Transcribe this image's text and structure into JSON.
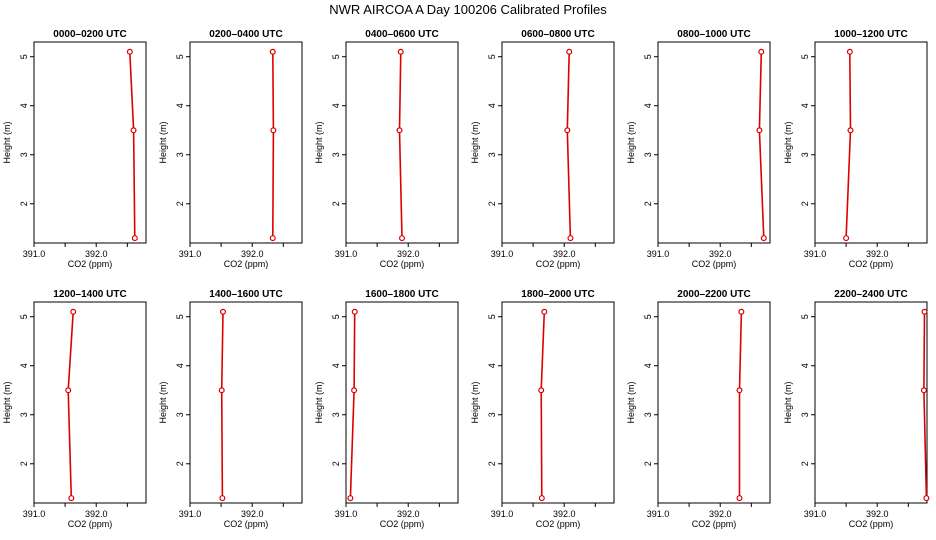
{
  "title": "NWR AIRCOA A  Day 100206  Calibrated Profiles",
  "chart_data": {
    "type": "line",
    "xlabel": "CO2 (ppm)",
    "ylabel": "Height (m)",
    "xlim": [
      391.0,
      392.8
    ],
    "ylim": [
      1.2,
      5.3
    ],
    "xticks": [
      391.0,
      391.5,
      392.0,
      392.5
    ],
    "xtick_labels": [
      "391.0",
      "",
      "392.0",
      ""
    ],
    "yticks": [
      2,
      3,
      4,
      5
    ],
    "ytick_labels": [
      "2",
      "3",
      "4",
      "5"
    ],
    "series_color": "#dd0000",
    "panels": [
      {
        "title": "0000–0200 UTC",
        "points": [
          {
            "x": 392.54,
            "y": 5.1
          },
          {
            "x": 392.6,
            "y": 3.5
          },
          {
            "x": 392.62,
            "y": 1.3
          }
        ]
      },
      {
        "title": "0200–0400 UTC",
        "points": [
          {
            "x": 392.33,
            "y": 5.1
          },
          {
            "x": 392.34,
            "y": 3.5
          },
          {
            "x": 392.33,
            "y": 1.3
          }
        ]
      },
      {
        "title": "0400–0600 UTC",
        "points": [
          {
            "x": 391.88,
            "y": 5.1
          },
          {
            "x": 391.86,
            "y": 3.5
          },
          {
            "x": 391.9,
            "y": 1.3
          }
        ]
      },
      {
        "title": "0600–0800 UTC",
        "points": [
          {
            "x": 392.08,
            "y": 5.1
          },
          {
            "x": 392.05,
            "y": 3.5
          },
          {
            "x": 392.1,
            "y": 1.3
          }
        ]
      },
      {
        "title": "0800–1000 UTC",
        "points": [
          {
            "x": 392.66,
            "y": 5.1
          },
          {
            "x": 392.63,
            "y": 3.5
          },
          {
            "x": 392.7,
            "y": 1.3
          }
        ]
      },
      {
        "title": "1000–1200 UTC",
        "points": [
          {
            "x": 391.56,
            "y": 5.1
          },
          {
            "x": 391.57,
            "y": 3.5
          },
          {
            "x": 391.5,
            "y": 1.3
          }
        ]
      },
      {
        "title": "1200–1400 UTC",
        "points": [
          {
            "x": 391.63,
            "y": 5.1
          },
          {
            "x": 391.55,
            "y": 3.5
          },
          {
            "x": 391.6,
            "y": 1.3
          }
        ]
      },
      {
        "title": "1400–1600 UTC",
        "points": [
          {
            "x": 391.53,
            "y": 5.1
          },
          {
            "x": 391.51,
            "y": 3.5
          },
          {
            "x": 391.52,
            "y": 1.3
          }
        ]
      },
      {
        "title": "1600–1800 UTC",
        "points": [
          {
            "x": 391.14,
            "y": 5.1
          },
          {
            "x": 391.13,
            "y": 3.5
          },
          {
            "x": 391.07,
            "y": 1.3
          }
        ]
      },
      {
        "title": "1800–2000 UTC",
        "points": [
          {
            "x": 391.68,
            "y": 5.1
          },
          {
            "x": 391.63,
            "y": 3.5
          },
          {
            "x": 391.64,
            "y": 1.3
          }
        ]
      },
      {
        "title": "2000–2200 UTC",
        "points": [
          {
            "x": 392.34,
            "y": 5.1
          },
          {
            "x": 392.31,
            "y": 3.5
          },
          {
            "x": 392.31,
            "y": 1.3
          }
        ]
      },
      {
        "title": "2200–2400 UTC",
        "points": [
          {
            "x": 392.76,
            "y": 5.1
          },
          {
            "x": 392.75,
            "y": 3.5
          },
          {
            "x": 392.79,
            "y": 1.3
          }
        ]
      }
    ]
  }
}
